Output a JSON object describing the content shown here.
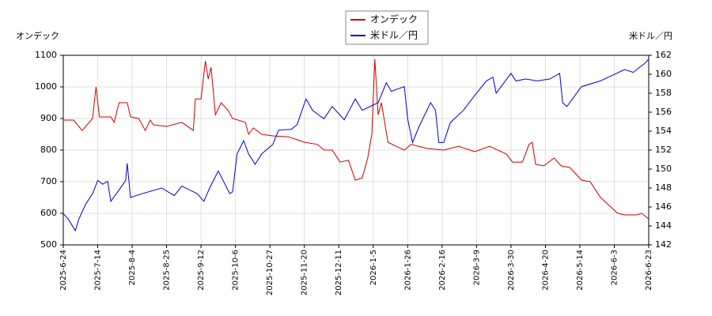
{
  "chart_data": {
    "type": "line",
    "y_label": "オンデック",
    "y2_label": "米ドル／円",
    "xticks": [
      "2025-6-24",
      "2025-7-14",
      "2025-8-4",
      "2025-8-25",
      "2025-9-12",
      "2025-10-6",
      "2025-10-27",
      "2025-11-20",
      "2025-12-11",
      "2026-1-5",
      "2026-1-26",
      "2026-2-16",
      "2026-3-9",
      "2026-3-30",
      "2026-4-20",
      "2026-5-14",
      "2026-6-3",
      "2026-6-23"
    ],
    "xlim": [
      "2025-6-24",
      "2026-6-23"
    ],
    "ylim": [
      500,
      1100
    ],
    "yticks": [
      500,
      600,
      700,
      800,
      900,
      1000,
      1100
    ],
    "y2lim": [
      142,
      162
    ],
    "y2ticks": [
      142,
      144,
      146,
      148,
      150,
      152,
      154,
      156,
      158,
      160,
      162
    ],
    "grid": true,
    "legend": "top",
    "series": [
      {
        "name": "オンデック",
        "color": "#cc0000",
        "x": [
          "2025-6-24",
          "2025-6-30",
          "2025-7-5",
          "2025-7-11",
          "2025-7-13",
          "2025-7-15",
          "2025-7-22",
          "2025-7-24",
          "2025-7-27",
          "2025-8-1",
          "2025-8-3",
          "2025-8-8",
          "2025-8-12",
          "2025-8-15",
          "2025-8-17",
          "2025-8-25",
          "2025-9-2",
          "2025-9-8",
          "2025-9-9",
          "2025-9-12",
          "2025-9-15",
          "2025-9-17",
          "2025-9-19",
          "2025-9-22",
          "2025-9-26",
          "2025-10-1",
          "2025-10-4",
          "2025-10-12",
          "2025-10-14",
          "2025-10-17",
          "2025-10-22",
          "2025-10-29",
          "2025-11-9",
          "2025-11-20",
          "2025-11-28",
          "2025-12-2",
          "2025-12-7",
          "2025-12-12",
          "2025-12-18",
          "2025-12-23",
          "2025-12-28",
          "2026-1-1",
          "2026-1-4",
          "2026-1-6",
          "2026-1-8",
          "2026-1-10",
          "2026-1-14",
          "2026-1-19",
          "2026-1-24",
          "2026-1-28",
          "2026-2-7",
          "2026-2-17",
          "2026-2-26",
          "2026-3-8",
          "2026-3-17",
          "2026-3-27",
          "2026-3-31",
          "2026-4-6",
          "2026-4-10",
          "2026-4-12",
          "2026-4-14",
          "2026-4-19",
          "2026-4-26",
          "2026-5-1",
          "2026-5-7",
          "2026-5-15",
          "2026-5-20",
          "2026-5-26",
          "2026-5-31",
          "2026-6-5",
          "2026-6-9",
          "2026-6-16",
          "2026-6-19",
          "2026-6-23"
        ],
        "values": [
          895,
          895,
          862,
          900,
          1000,
          905,
          905,
          888,
          950,
          950,
          905,
          900,
          862,
          895,
          880,
          875,
          888,
          862,
          962,
          962,
          1082,
          1025,
          1062,
          912,
          950,
          925,
          900,
          888,
          850,
          870,
          850,
          845,
          842,
          825,
          818,
          800,
          800,
          762,
          768,
          705,
          712,
          775,
          850,
          1088,
          912,
          950,
          825,
          812,
          800,
          818,
          805,
          800,
          812,
          795,
          812,
          788,
          762,
          762,
          818,
          825,
          755,
          750,
          775,
          750,
          745,
          705,
          700,
          650,
          625,
          600,
          595,
          595,
          600,
          582
        ]
      },
      {
        "name": "米ドル／円",
        "color": "#0000cc",
        "axis": "y2",
        "x": [
          "2025-6-24",
          "2025-6-27",
          "2025-7-1",
          "2025-7-3",
          "2025-7-7",
          "2025-7-11",
          "2025-7-14",
          "2025-7-17",
          "2025-7-20",
          "2025-7-22",
          "2025-7-27",
          "2025-7-31",
          "2025-8-1",
          "2025-8-3",
          "2025-8-10",
          "2025-8-22",
          "2025-8-29",
          "2025-9-2",
          "2025-9-10",
          "2025-9-14",
          "2025-9-18",
          "2025-9-24",
          "2025-10-2",
          "2025-10-4",
          "2025-10-7",
          "2025-10-11",
          "2025-10-14",
          "2025-10-18",
          "2025-10-22",
          "2025-10-29",
          "2025-11-2",
          "2025-11-11",
          "2025-11-15",
          "2025-11-21",
          "2025-11-25",
          "2025-12-2",
          "2025-12-7",
          "2025-12-15",
          "2025-12-23",
          "2025-12-28",
          "2026-1-8",
          "2026-1-13",
          "2026-1-16",
          "2026-1-24",
          "2026-1-26",
          "2026-1-29",
          "2026-2-2",
          "2026-2-9",
          "2026-2-12",
          "2026-2-14",
          "2026-2-17",
          "2026-2-21",
          "2026-3-1",
          "2026-3-8",
          "2026-3-15",
          "2026-3-19",
          "2026-3-21",
          "2026-3-30",
          "2026-4-2",
          "2026-4-8",
          "2026-4-15",
          "2026-4-23",
          "2026-4-30",
          "2026-5-2",
          "2026-5-5",
          "2026-5-15",
          "2026-5-26",
          "2026-6-9",
          "2026-6-14",
          "2026-6-21",
          "2026-6-23"
        ],
        "values": [
          145.3,
          144.7,
          143.5,
          144.7,
          146.3,
          147.4,
          148.8,
          148.4,
          148.7,
          146.6,
          147.8,
          148.8,
          150.6,
          147,
          147.4,
          148,
          147.2,
          148.2,
          147.4,
          146.6,
          148,
          149.8,
          147.4,
          147.6,
          151.6,
          153,
          151.6,
          150.5,
          151.6,
          152.6,
          154.1,
          154.2,
          154.7,
          157.4,
          156.2,
          155.3,
          156.6,
          155.2,
          157.4,
          156.2,
          157,
          159.1,
          158.2,
          158.7,
          155.3,
          152.8,
          154.5,
          157,
          156.2,
          152.8,
          152.8,
          154.9,
          156.2,
          157.8,
          159.3,
          159.7,
          158,
          160.1,
          159.3,
          159.5,
          159.3,
          159.5,
          160.1,
          157,
          156.6,
          158.7,
          159.3,
          160.5,
          160.2,
          161.2,
          161.6
        ]
      }
    ]
  }
}
